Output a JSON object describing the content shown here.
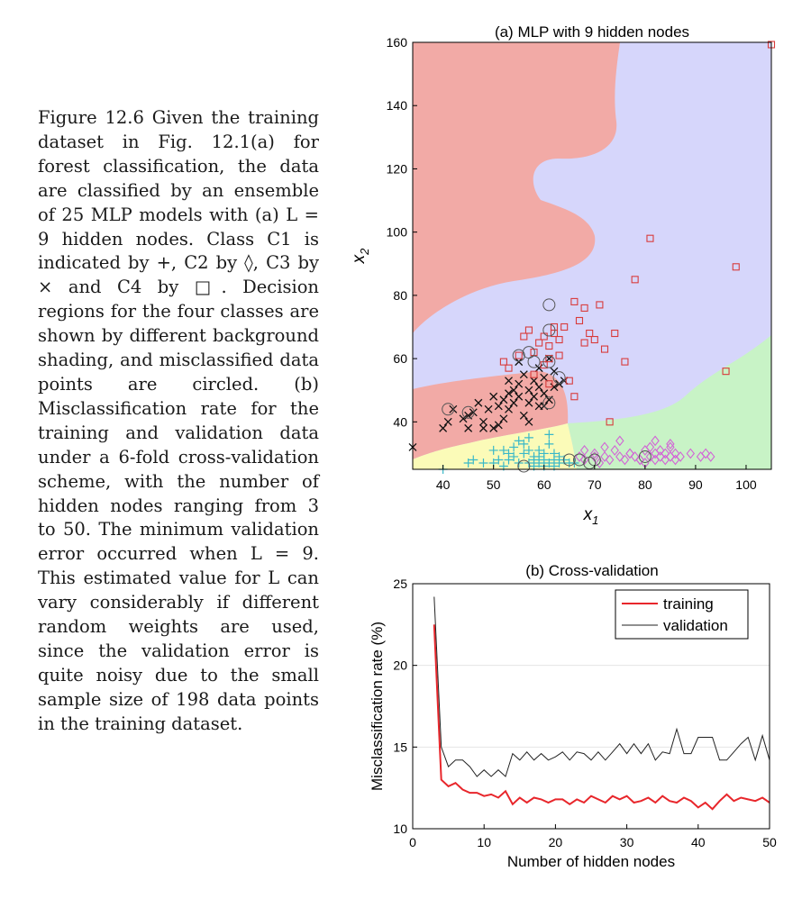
{
  "caption": {
    "figure_label": "Figure 12.6",
    "text": "Given the training dataset in Fig. 12.1(a) for forest classification, the data are classified by an ensemble of 25 MLP models with (a) L = 9 hidden nodes. Class C1 is indicated by +, C2 by ◊, C3 by × and C4 by □. Decision regions for the four classes are shown by different background shading, and misclassified data points are circled. (b) Misclassification rate for the training and validation data under a 6-fold cross-validation scheme, with the number of hidden nodes ranging from 3 to 50. The minimum validation error occurred when L = 9. This estimated value for L can vary considerably if different random weights are used, since the validation error is quite noisy due to the small sample size of 198 data points in the training dataset."
  },
  "colors": {
    "c1_region": "#fbfbb8",
    "c2_region": "#c8f3c6",
    "c3_region": "#f2aaa6",
    "c4_region": "#d6d6fb",
    "c1_marker": "#39b8c8",
    "c2_marker": "#d264d6",
    "c3_marker": "#111111",
    "c4_marker": "#d83b3b",
    "training_line": "#e8262b",
    "validation_line": "#222222"
  },
  "chart_data": [
    {
      "type": "scatter",
      "title": "(a)  MLP with 9 hidden nodes",
      "xlabel": "x1",
      "ylabel": "x2",
      "xlim": [
        34,
        105
      ],
      "ylim": [
        25,
        160
      ],
      "xticks": [
        40,
        50,
        60,
        70,
        80,
        90,
        100
      ],
      "yticks": [
        40,
        60,
        80,
        100,
        120,
        140,
        160
      ],
      "regions": [
        "C1",
        "C2",
        "C3",
        "C4"
      ],
      "series": [
        {
          "name": "C1",
          "marker": "+",
          "x": [
            40,
            45,
            46,
            48,
            50,
            51,
            52,
            53,
            54,
            55,
            56,
            57,
            57,
            58,
            58,
            59,
            59,
            60,
            60,
            61,
            62,
            62,
            63,
            64,
            65,
            52,
            54,
            56,
            58,
            60,
            62,
            55,
            57,
            59,
            61,
            63,
            50,
            53,
            66,
            61
          ],
          "y": [
            25,
            27,
            28,
            27,
            27,
            28,
            26,
            28,
            29,
            27,
            30,
            31,
            27,
            28,
            26,
            29,
            27,
            28,
            26,
            27,
            28,
            30,
            27,
            28,
            27,
            31,
            32,
            33,
            29,
            30,
            26,
            34,
            35,
            31,
            33,
            29,
            31,
            30,
            27,
            36
          ]
        },
        {
          "name": "C2",
          "marker": "diamond",
          "x": [
            67,
            68,
            70,
            71,
            72,
            73,
            74,
            75,
            76,
            77,
            78,
            79,
            80,
            80,
            81,
            81,
            82,
            82,
            83,
            83,
            84,
            84,
            85,
            85,
            86,
            86,
            87,
            89,
            91,
            92,
            93,
            79,
            77,
            75,
            68,
            85,
            82,
            72,
            70
          ],
          "y": [
            29,
            28,
            30,
            27,
            29,
            28,
            31,
            29,
            28,
            30,
            29,
            28,
            31,
            27,
            32,
            29,
            30,
            28,
            31,
            29,
            30,
            28,
            32,
            29,
            30,
            28,
            29,
            30,
            29,
            30,
            29,
            28,
            30,
            34,
            31,
            33,
            34,
            32,
            29
          ]
        },
        {
          "name": "C3",
          "marker": "x",
          "x": [
            34,
            40,
            41,
            42,
            44,
            45,
            46,
            47,
            48,
            49,
            50,
            51,
            51,
            52,
            52,
            53,
            53,
            54,
            54,
            55,
            55,
            56,
            56,
            57,
            57,
            58,
            58,
            59,
            59,
            60,
            60,
            61,
            61,
            62,
            62,
            63,
            64,
            50,
            48,
            55,
            57,
            59,
            53,
            45,
            60
          ],
          "y": [
            32,
            38,
            40,
            44,
            41,
            38,
            43,
            46,
            40,
            44,
            38,
            39,
            45,
            47,
            41,
            49,
            44,
            50,
            46,
            52,
            48,
            55,
            42,
            50,
            46,
            53,
            48,
            57,
            51,
            54,
            49,
            60,
            47,
            56,
            51,
            52,
            53,
            48,
            38,
            59,
            40,
            45,
            53,
            42,
            45
          ]
        },
        {
          "name": "C4",
          "marker": "square",
          "x": [
            52,
            53,
            55,
            56,
            57,
            58,
            58,
            59,
            60,
            60,
            61,
            61,
            62,
            62,
            63,
            63,
            64,
            65,
            66,
            66,
            67,
            68,
            68,
            69,
            70,
            71,
            72,
            73,
            74,
            76,
            78,
            81,
            98,
            96,
            61
          ],
          "y": [
            59,
            57,
            61,
            67,
            69,
            55,
            62,
            65,
            58,
            67,
            60,
            64,
            68,
            70,
            61,
            66,
            70,
            53,
            48,
            78,
            72,
            76,
            65,
            68,
            66,
            77,
            63,
            40,
            68,
            59,
            85,
            98,
            89,
            56,
            52
          ]
        }
      ],
      "circled_points": [
        {
          "x": 41,
          "y": 44
        },
        {
          "x": 45,
          "y": 43
        },
        {
          "x": 55,
          "y": 61
        },
        {
          "x": 57,
          "y": 62
        },
        {
          "x": 58,
          "y": 59
        },
        {
          "x": 61,
          "y": 77
        },
        {
          "x": 61,
          "y": 69
        },
        {
          "x": 61,
          "y": 59
        },
        {
          "x": 63,
          "y": 54
        },
        {
          "x": 61,
          "y": 46
        },
        {
          "x": 56,
          "y": 26
        },
        {
          "x": 65,
          "y": 28
        },
        {
          "x": 67,
          "y": 28
        },
        {
          "x": 69,
          "y": 27
        },
        {
          "x": 70,
          "y": 28
        },
        {
          "x": 80,
          "y": 29
        }
      ]
    },
    {
      "type": "line",
      "title": "(b)  Cross-validation",
      "xlabel": "Number of hidden nodes",
      "ylabel": "Misclassification rate (%)",
      "xlim": [
        0,
        50
      ],
      "ylim": [
        10,
        25
      ],
      "xticks": [
        0,
        10,
        20,
        30,
        40,
        50
      ],
      "yticks": [
        10,
        15,
        20,
        25
      ],
      "grid": "horizontal",
      "legend_position": "top-right",
      "x": [
        3,
        4,
        5,
        6,
        7,
        8,
        9,
        10,
        11,
        12,
        13,
        14,
        15,
        16,
        17,
        18,
        19,
        20,
        21,
        22,
        23,
        24,
        25,
        26,
        27,
        28,
        29,
        30,
        31,
        32,
        33,
        34,
        35,
        36,
        37,
        38,
        39,
        40,
        41,
        42,
        43,
        44,
        45,
        46,
        47,
        48,
        49,
        50
      ],
      "series": [
        {
          "name": "training",
          "values": [
            22.5,
            13.0,
            12.6,
            12.8,
            12.4,
            12.2,
            12.2,
            12.0,
            12.1,
            11.9,
            12.3,
            11.5,
            11.9,
            11.6,
            11.9,
            11.8,
            11.6,
            11.8,
            11.8,
            11.5,
            11.8,
            11.6,
            12.0,
            11.8,
            11.6,
            12.0,
            11.8,
            12.0,
            11.6,
            11.7,
            11.9,
            11.6,
            12.0,
            11.7,
            11.6,
            11.9,
            11.7,
            11.3,
            11.6,
            11.2,
            11.7,
            12.1,
            11.7,
            11.9,
            11.8,
            11.7,
            11.9,
            11.6
          ]
        },
        {
          "name": "validation",
          "values": [
            24.2,
            15.0,
            13.8,
            14.2,
            14.2,
            13.8,
            13.2,
            13.6,
            13.2,
            13.6,
            13.2,
            14.6,
            14.2,
            14.7,
            14.2,
            14.6,
            14.2,
            14.4,
            14.7,
            14.2,
            14.7,
            14.6,
            14.2,
            14.7,
            14.2,
            14.7,
            15.2,
            14.6,
            15.2,
            14.6,
            15.2,
            14.2,
            14.7,
            14.6,
            16.1,
            14.6,
            14.6,
            15.6,
            15.6,
            15.6,
            14.2,
            14.2,
            14.7,
            15.2,
            15.6,
            14.2,
            15.7,
            14.2
          ]
        }
      ]
    }
  ]
}
